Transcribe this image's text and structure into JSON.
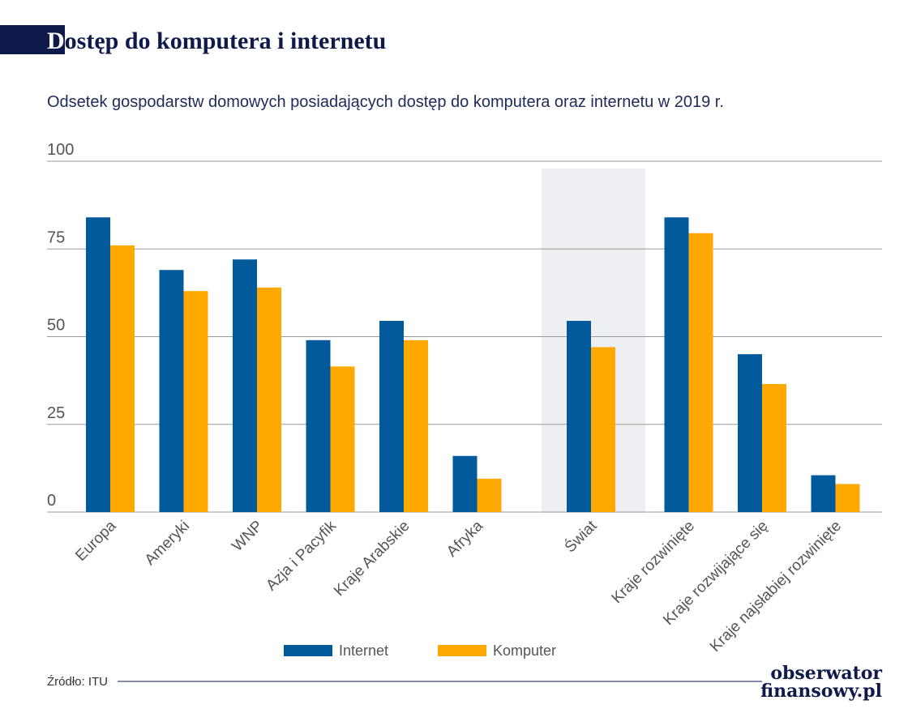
{
  "chart_data": {
    "type": "bar",
    "title": "Dostęp do komputera i internetu",
    "subtitle": "Odsetek gospodarstw domowych posiadających dostęp do komputera oraz internetu w 2019 r.",
    "categories": [
      "Europa",
      "Ameryki",
      "WNP",
      "Azja i Pacyfik",
      "Kraje Arabskie",
      "Afryka",
      "Świat",
      "Kraje rozwinięte",
      "Kraje rozwijające się",
      "Kraje najsłabiej rozwinięte"
    ],
    "series": [
      {
        "name": "Internet",
        "color": "#005a9c",
        "values": [
          84,
          69,
          72,
          49,
          54.5,
          16,
          54.5,
          84,
          45,
          10.5
        ]
      },
      {
        "name": "Komputer",
        "color": "#ffa800",
        "values": [
          76,
          63,
          64,
          41.5,
          49,
          9.5,
          47,
          79.5,
          36.5,
          8
        ]
      }
    ],
    "ylim": [
      0,
      100
    ],
    "yticks": [
      0,
      25,
      50,
      75,
      100
    ],
    "grid": true,
    "source": "Źródło: ITU",
    "brand": [
      "obserwator",
      "finansowy.pl"
    ]
  }
}
